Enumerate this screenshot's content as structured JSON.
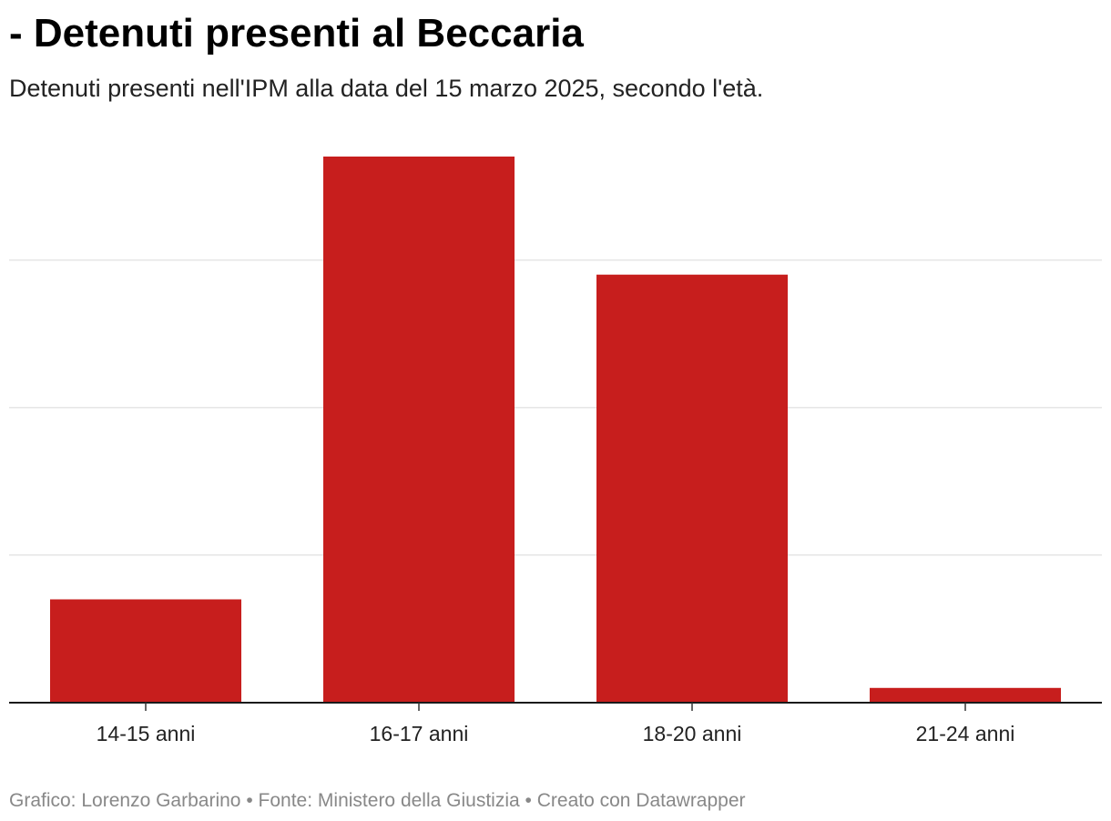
{
  "chart_data": {
    "type": "bar",
    "title": "- Detenuti presenti al Beccaria",
    "subtitle": "Detenuti presenti nell'IPM alla data del 15 marzo 2025, secondo l'età.",
    "categories": [
      "14-15 anni",
      "16-17 anni",
      "18-20 anni",
      "21-24 anni"
    ],
    "values": [
      7,
      37,
      29,
      1
    ],
    "ylim": [
      0,
      37
    ],
    "grid": true,
    "gridlines": [
      10,
      20,
      30
    ]
  },
  "footer": {
    "byline_label": "Grafico:",
    "byline": "Lorenzo Garbarino",
    "separator": "•",
    "source_label": "Fonte:",
    "source": "Ministero della Giustizia",
    "credit": "Creato con Datawrapper"
  },
  "colors": {
    "bar": "#c71e1d",
    "gridline": "#e6e6e6",
    "baseline": "#1a1a1a",
    "tick": "#333333"
  }
}
